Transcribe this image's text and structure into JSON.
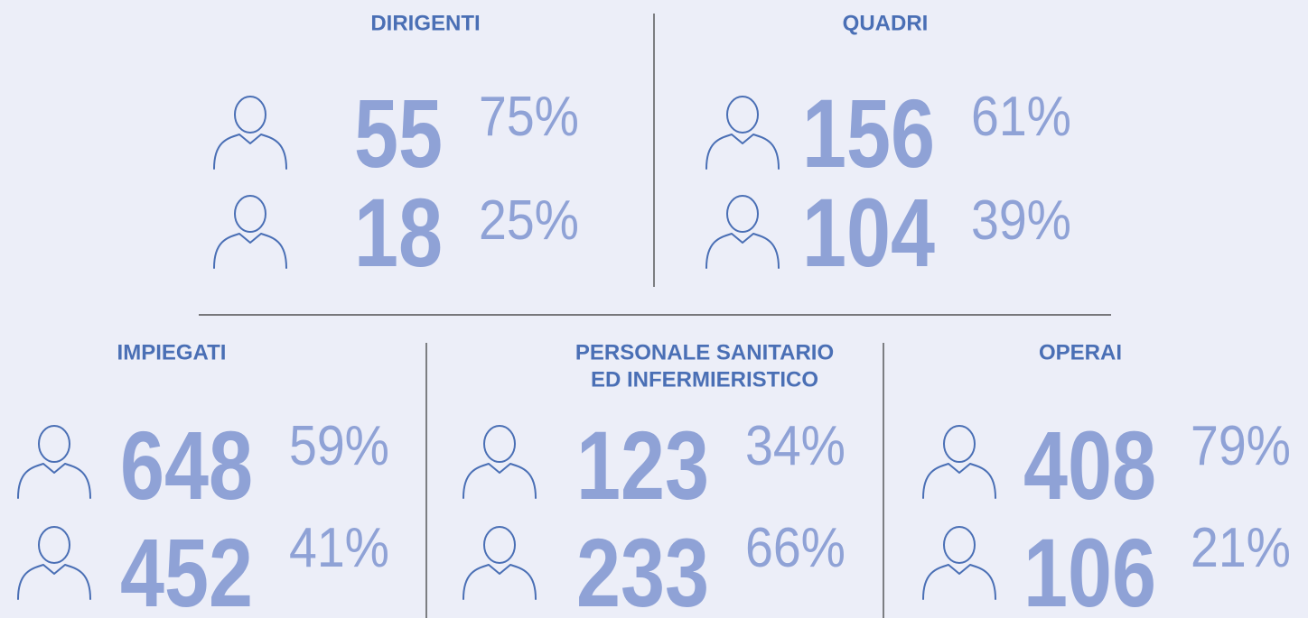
{
  "groups": [
    {
      "title_lines": [
        "DIRIGENTI"
      ],
      "rows": [
        {
          "count": "55",
          "percent": "75%"
        },
        {
          "count": "18",
          "percent": "25%"
        }
      ]
    },
    {
      "title_lines": [
        "QUADRI"
      ],
      "rows": [
        {
          "count": "156",
          "percent": "61%"
        },
        {
          "count": "104",
          "percent": "39%"
        }
      ]
    },
    {
      "title_lines": [
        "IMPIEGATI"
      ],
      "rows": [
        {
          "count": "648",
          "percent": "59%"
        },
        {
          "count": "452",
          "percent": "41%"
        }
      ]
    },
    {
      "title_lines": [
        "PERSONALE SANITARIO",
        "ED INFERMIERISTICO"
      ],
      "rows": [
        {
          "count": "123",
          "percent": "34%"
        },
        {
          "count": "233",
          "percent": "66%"
        }
      ]
    },
    {
      "title_lines": [
        "OPERAI"
      ],
      "rows": [
        {
          "count": "408",
          "percent": "79%"
        },
        {
          "count": "106",
          "percent": "21%"
        }
      ]
    }
  ]
}
